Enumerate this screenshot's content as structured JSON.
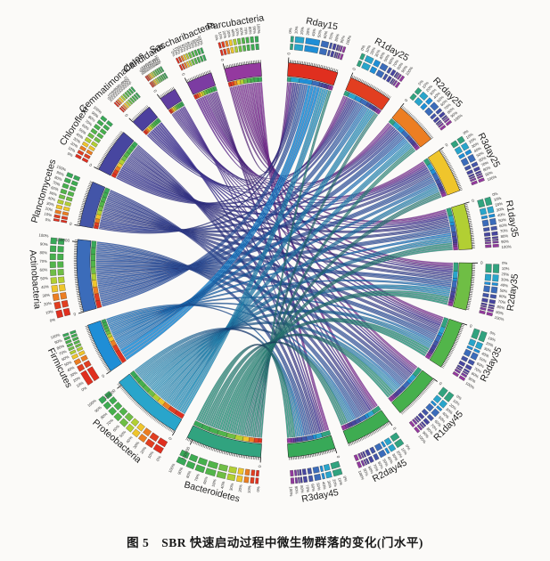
{
  "caption": "图 5　SBR 快速启动过程中微生物群落的变化(门水平)",
  "chart_data": {
    "type": "chord",
    "title": "SBR 快速启动过程中微生物群落的变化(门水平)",
    "layout": "circos; taxa on left half, samples on right half; outer stacked percent rings, count tick scale, colored sector band, ribbons colored by taxon",
    "unit_multiplier": 1000,
    "taxa": [
      {
        "name": "Bacteroidetes",
        "color": "#31A37F"
      },
      {
        "name": "Proteobacteria",
        "color": "#29A5CB"
      },
      {
        "name": "Firmicutes",
        "color": "#1F8ED6"
      },
      {
        "name": "Actinobacteria",
        "color": "#3B6CBA"
      },
      {
        "name": "Planctomycetes",
        "color": "#4355A8"
      },
      {
        "name": "Chloroflexi",
        "color": "#4746A0"
      },
      {
        "name": "Gemmatimonadetes",
        "color": "#4C409E"
      },
      {
        "name": "Candidatus",
        "color": "#603EA0"
      },
      {
        "name": "Saccharibacteria",
        "color": "#7C3CA2"
      },
      {
        "name": "Parcubacteria",
        "color": "#94399F"
      }
    ],
    "samples": [
      {
        "name": "Rday15",
        "color": "#E02F1F"
      },
      {
        "name": "R1day25",
        "color": "#E23E20"
      },
      {
        "name": "R2day25",
        "color": "#EC7E22"
      },
      {
        "name": "R3day25",
        "color": "#EFC52C"
      },
      {
        "name": "R1day35",
        "color": "#B2CF33"
      },
      {
        "name": "R2day35",
        "color": "#6FBE45"
      },
      {
        "name": "R3day35",
        "color": "#52B54A"
      },
      {
        "name": "R1day45",
        "color": "#46B04C"
      },
      {
        "name": "R2day45",
        "color": "#3EAC51"
      },
      {
        "name": "R3day45",
        "color": "#38A958"
      }
    ],
    "matrix_rows": "taxa",
    "matrix_cols": "samples",
    "matrix": [
      [
        8,
        10,
        12,
        14,
        18,
        20,
        22,
        20,
        18,
        20
      ],
      [
        20,
        18,
        16,
        15,
        15,
        16,
        15,
        15,
        14,
        14
      ],
      [
        30,
        14,
        12,
        10,
        8,
        7,
        7,
        7,
        7,
        7
      ],
      [
        17,
        16,
        16,
        16,
        15,
        15,
        15,
        15,
        15,
        15
      ],
      [
        6,
        8,
        9,
        10,
        10,
        10,
        11,
        11,
        11,
        11
      ],
      [
        8,
        9,
        9,
        9,
        10,
        10,
        10,
        10,
        10,
        10
      ],
      [
        4,
        4,
        4,
        5,
        5,
        5,
        5,
        5,
        5,
        5
      ],
      [
        3,
        3,
        3,
        4,
        4,
        4,
        4,
        4,
        4,
        4
      ],
      [
        5,
        5,
        5,
        5,
        5,
        6,
        6,
        6,
        6,
        6
      ],
      [
        6,
        7,
        7,
        8,
        8,
        8,
        8,
        8,
        9,
        9
      ]
    ],
    "scale": {
      "minor_tick": 3000,
      "major_tick": 50000,
      "count_labels": [
        "0",
        "50000",
        "100000",
        "150000"
      ],
      "percent_labels": [
        "0%",
        "10%",
        "20%",
        "30%",
        "40%",
        "50%",
        "60%",
        "70%",
        "80%",
        "90%",
        "100%"
      ]
    },
    "grid": false,
    "legend": "none (labels around circle)"
  }
}
